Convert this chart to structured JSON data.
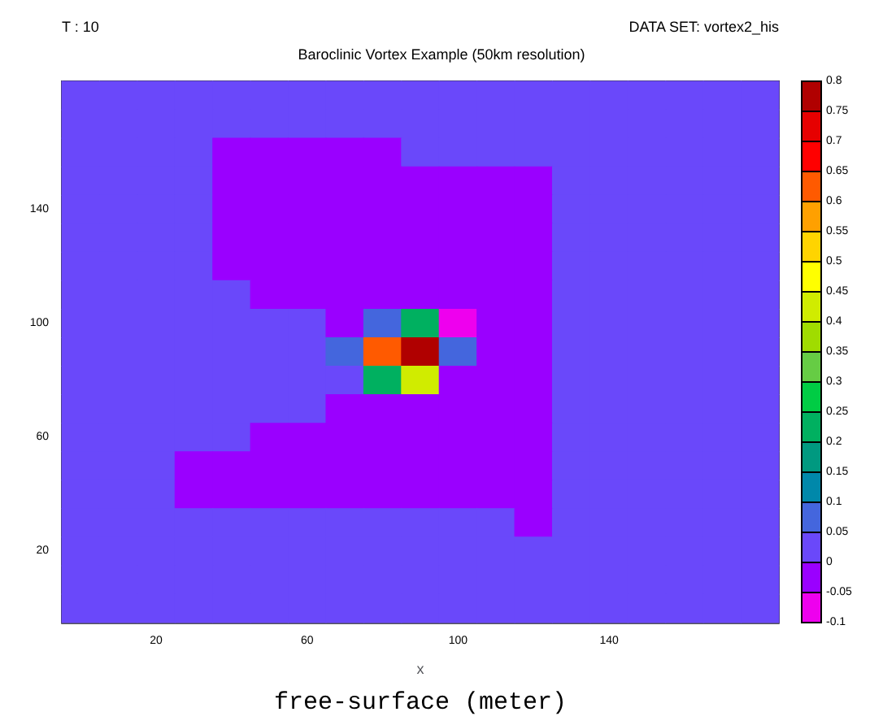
{
  "chart_data": {
    "type": "heatmap",
    "title": "Baroclinic Vortex Example (50km resolution)",
    "annotations": [
      "T : 10",
      "DATA SET: vortex2_his"
    ],
    "xlabel": "x",
    "clabel": "free-surface (meter)",
    "categories": [
      null,
      null,
      "20",
      null,
      null,
      null,
      "60",
      null,
      null,
      null,
      "100",
      null,
      null,
      null,
      "140",
      null,
      null,
      null,
      null
    ],
    "y_categories": [
      null,
      null,
      null,
      null,
      "140",
      null,
      null,
      null,
      "100",
      null,
      null,
      null,
      "60",
      null,
      null,
      null,
      "20",
      null,
      null
    ],
    "cells": [
      [
        0.02,
        0.02,
        0.02,
        0.02,
        0.02,
        0.02,
        0.02,
        0.02,
        0.02,
        0.02,
        0.02,
        0.02,
        0.02,
        0.02,
        0.02,
        0.02,
        0.02,
        0.02,
        0.02
      ],
      [
        0.02,
        0.02,
        0.02,
        0.02,
        0.02,
        0.02,
        0.02,
        0.02,
        0.02,
        0.02,
        0.02,
        0.02,
        0.02,
        0.02,
        0.02,
        0.02,
        0.02,
        0.02,
        0.02
      ],
      [
        0.02,
        0.02,
        0.02,
        0.02,
        -0.02,
        -0.02,
        -0.02,
        -0.02,
        -0.02,
        0.02,
        0.02,
        0.02,
        0.02,
        0.02,
        0.02,
        0.02,
        0.02,
        0.02,
        0.02
      ],
      [
        0.02,
        0.02,
        0.02,
        0.02,
        -0.02,
        -0.02,
        -0.02,
        -0.02,
        -0.02,
        -0.02,
        -0.02,
        -0.02,
        -0.02,
        0.02,
        0.02,
        0.02,
        0.02,
        0.02,
        0.02
      ],
      [
        0.02,
        0.02,
        0.02,
        0.02,
        -0.02,
        -0.02,
        -0.02,
        -0.02,
        -0.02,
        -0.02,
        -0.02,
        -0.02,
        -0.02,
        0.02,
        0.02,
        0.02,
        0.02,
        0.02,
        0.02
      ],
      [
        0.02,
        0.02,
        0.02,
        0.02,
        -0.02,
        -0.02,
        -0.02,
        -0.02,
        -0.02,
        -0.02,
        -0.02,
        -0.02,
        -0.02,
        0.02,
        0.02,
        0.02,
        0.02,
        0.02,
        0.02
      ],
      [
        0.02,
        0.02,
        0.02,
        0.02,
        -0.02,
        -0.02,
        -0.02,
        -0.02,
        -0.02,
        -0.02,
        -0.02,
        -0.02,
        -0.02,
        0.02,
        0.02,
        0.02,
        0.02,
        0.02,
        0.02
      ],
      [
        0.02,
        0.02,
        0.02,
        0.02,
        0.02,
        -0.02,
        -0.02,
        -0.02,
        -0.02,
        -0.02,
        -0.02,
        -0.02,
        -0.02,
        0.02,
        0.02,
        0.02,
        0.02,
        0.02,
        0.02
      ],
      [
        0.02,
        0.02,
        0.02,
        0.02,
        0.02,
        0.02,
        0.02,
        -0.02,
        0.07,
        0.2,
        -0.07,
        -0.02,
        -0.02,
        0.02,
        0.02,
        0.02,
        0.02,
        0.02,
        0.02
      ],
      [
        0.02,
        0.02,
        0.02,
        0.02,
        0.02,
        0.02,
        0.02,
        0.07,
        0.6,
        0.78,
        0.07,
        -0.02,
        -0.02,
        0.02,
        0.02,
        0.02,
        0.02,
        0.02,
        0.02
      ],
      [
        0.02,
        0.02,
        0.02,
        0.02,
        0.02,
        0.02,
        0.02,
        0.02,
        0.2,
        0.4,
        -0.02,
        -0.02,
        -0.02,
        0.02,
        0.02,
        0.02,
        0.02,
        0.02,
        0.02
      ],
      [
        0.02,
        0.02,
        0.02,
        0.02,
        0.02,
        0.02,
        0.02,
        -0.02,
        -0.02,
        -0.02,
        -0.02,
        -0.02,
        -0.02,
        0.02,
        0.02,
        0.02,
        0.02,
        0.02,
        0.02
      ],
      [
        0.02,
        0.02,
        0.02,
        0.02,
        0.02,
        -0.02,
        -0.02,
        -0.02,
        -0.02,
        -0.02,
        -0.02,
        -0.02,
        -0.02,
        0.02,
        0.02,
        0.02,
        0.02,
        0.02,
        0.02
      ],
      [
        0.02,
        0.02,
        0.02,
        -0.02,
        -0.02,
        -0.02,
        -0.02,
        -0.02,
        -0.02,
        -0.02,
        -0.02,
        -0.02,
        -0.02,
        0.02,
        0.02,
        0.02,
        0.02,
        0.02,
        0.02
      ],
      [
        0.02,
        0.02,
        0.02,
        -0.02,
        -0.02,
        -0.02,
        -0.02,
        -0.02,
        -0.02,
        -0.02,
        -0.02,
        -0.02,
        -0.02,
        0.02,
        0.02,
        0.02,
        0.02,
        0.02,
        0.02
      ],
      [
        0.02,
        0.02,
        0.02,
        0.02,
        0.02,
        0.02,
        0.02,
        0.02,
        0.02,
        0.02,
        0.02,
        0.02,
        -0.02,
        0.02,
        0.02,
        0.02,
        0.02,
        0.02,
        0.02
      ],
      [
        0.02,
        0.02,
        0.02,
        0.02,
        0.02,
        0.02,
        0.02,
        0.02,
        0.02,
        0.02,
        0.02,
        0.02,
        0.02,
        0.02,
        0.02,
        0.02,
        0.02,
        0.02,
        0.02
      ],
      [
        0.02,
        0.02,
        0.02,
        0.02,
        0.02,
        0.02,
        0.02,
        0.02,
        0.02,
        0.02,
        0.02,
        0.02,
        0.02,
        0.02,
        0.02,
        0.02,
        0.02,
        0.02,
        0.02
      ],
      [
        0.02,
        0.02,
        0.02,
        0.02,
        0.02,
        0.02,
        0.02,
        0.02,
        0.02,
        0.02,
        0.02,
        0.02,
        0.02,
        0.02,
        0.02,
        0.02,
        0.02,
        0.02,
        0.02
      ]
    ],
    "clim": [
      -0.1,
      0.8
    ],
    "cticks": [
      -0.1,
      -0.05,
      0,
      0.05,
      0.1,
      0.15,
      0.2,
      0.25,
      0.3,
      0.35,
      0.4,
      0.45,
      0.5,
      0.55,
      0.6,
      0.65,
      0.7,
      0.75,
      0.8
    ],
    "colors": [
      "#ee00ee",
      "#9a00ff",
      "#6a48fa",
      "#4466dd",
      "#0088aa",
      "#009980",
      "#00b060",
      "#00cc44",
      "#66cc44",
      "#a0dc00",
      "#d0ec00",
      "#ffff00",
      "#ffd400",
      "#ffa000",
      "#ff5a00",
      "#ff0000",
      "#e60000",
      "#b00000"
    ]
  }
}
